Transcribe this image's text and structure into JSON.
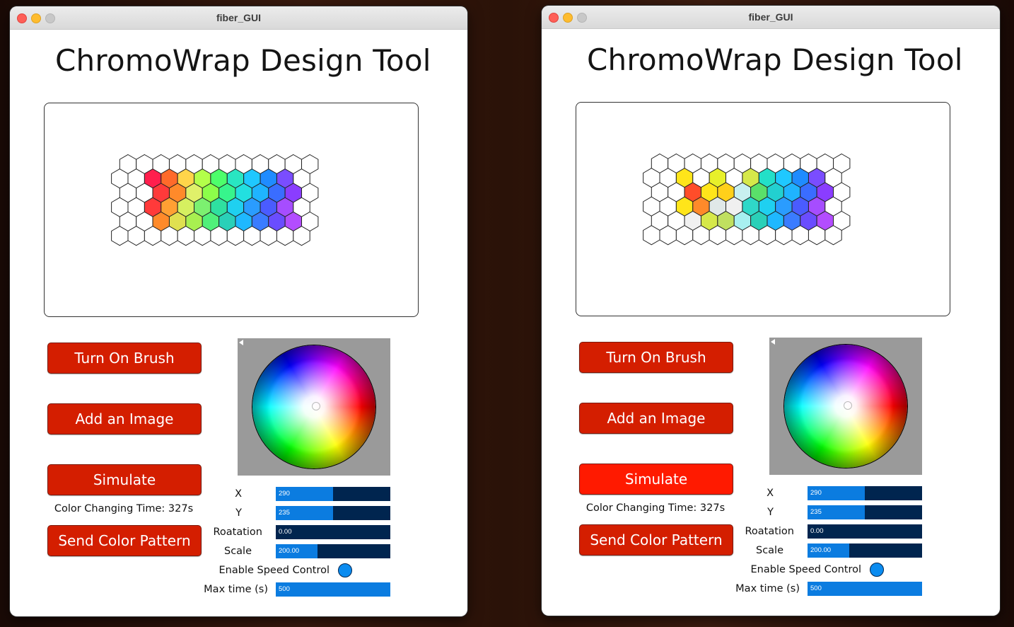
{
  "window_title": "fiber_GUI",
  "app_title": "ChromoWrap Design Tool",
  "buttons": {
    "brush": "Turn On Brush",
    "image": "Add an Image",
    "simulate": "Simulate",
    "send": "Send Color Pattern"
  },
  "color_time_text": "Color Changing Time: 327s",
  "sliders": [
    {
      "label": "X",
      "value_text": "290",
      "fraction": 0.5
    },
    {
      "label": "Y",
      "value_text": "235",
      "fraction": 0.5
    },
    {
      "label": "Roatation",
      "value_text": "0.00",
      "fraction": 0.0
    },
    {
      "label": "Scale",
      "value_text": "200.00",
      "fraction": 0.36
    }
  ],
  "speed_control_label": "Enable Speed Control",
  "max_time": {
    "label": "Max time (s)",
    "value_text": "500",
    "fraction": 1.0
  },
  "colors": {
    "button_red": "#d41e00",
    "button_red_pressed": "#ff1a00",
    "slider_track": "#00254f",
    "slider_fill": "#0b7ce0",
    "wheel_bg": "#9a9a9a"
  },
  "left_grid_colors": [
    [
      "",
      "",
      "",
      "",
      "",
      "",
      "",
      "",
      "",
      "",
      "",
      ""
    ],
    [
      "",
      "",
      "#ff1f4d",
      "#ff6a2a",
      "#ffd54a",
      "#b3ff4a",
      "#4dff6b",
      "#29e6c2",
      "#1fc8ff",
      "#1f8cff",
      "#7a4dff",
      ""
    ],
    [
      "",
      "",
      "#ff3a3a",
      "#ff8a2a",
      "#e0f06a",
      "#8cff4a",
      "#37f58c",
      "#22e0e0",
      "#1fb4ff",
      "#3a6dff",
      "#8a3dff",
      ""
    ],
    [
      "",
      "",
      "#ff3a3a",
      "#ffa033",
      "#d6f060",
      "#7cf070",
      "#2fe0a0",
      "#1fd0f0",
      "#2a9cff",
      "#4a5cff",
      "#a64dff",
      ""
    ],
    [
      "",
      "",
      "#ff8a2a",
      "#e0e050",
      "#a8f050",
      "#50f07a",
      "#2ad0b8",
      "#1fb8ff",
      "#3a7cff",
      "#6a4dff",
      "#b34dff",
      ""
    ],
    [
      "",
      "",
      "",
      "",
      "",
      "",
      "",
      "",
      "",
      "",
      "",
      ""
    ]
  ],
  "right_grid_colors": [
    [
      "",
      "",
      "",
      "",
      "",
      "",
      "",
      "",
      "",
      "",
      "",
      ""
    ],
    [
      "",
      "",
      "#ffe51a",
      "",
      "#e8f02a",
      "",
      "#d6e84a",
      "#22e0c8",
      "#1fc8ff",
      "#1f8cff",
      "#7a4dff",
      ""
    ],
    [
      "",
      "",
      "#ff4d2a",
      "#ffe51a",
      "#ffd01a",
      "#c8f0f0",
      "#5ae06a",
      "#22d0d0",
      "#1fb4ff",
      "#3a6dff",
      "#8a3dff",
      ""
    ],
    [
      "",
      "",
      "#ffe51a",
      "#ff8a2a",
      "#e0e8e8",
      "#f0f0f0",
      "#2fd8c8",
      "#1fd0f0",
      "#2a9cff",
      "#4a5cff",
      "#a64dff",
      ""
    ],
    [
      "",
      "",
      "#f0f0f0",
      "#d6e84a",
      "#c0e060",
      "#a8f0f0",
      "#2ad0b8",
      "#1fb8ff",
      "#3a7cff",
      "#6a4dff",
      "#b34dff",
      ""
    ],
    [
      "",
      "",
      "",
      "",
      "",
      "",
      "",
      "",
      "",
      "",
      "",
      ""
    ]
  ]
}
